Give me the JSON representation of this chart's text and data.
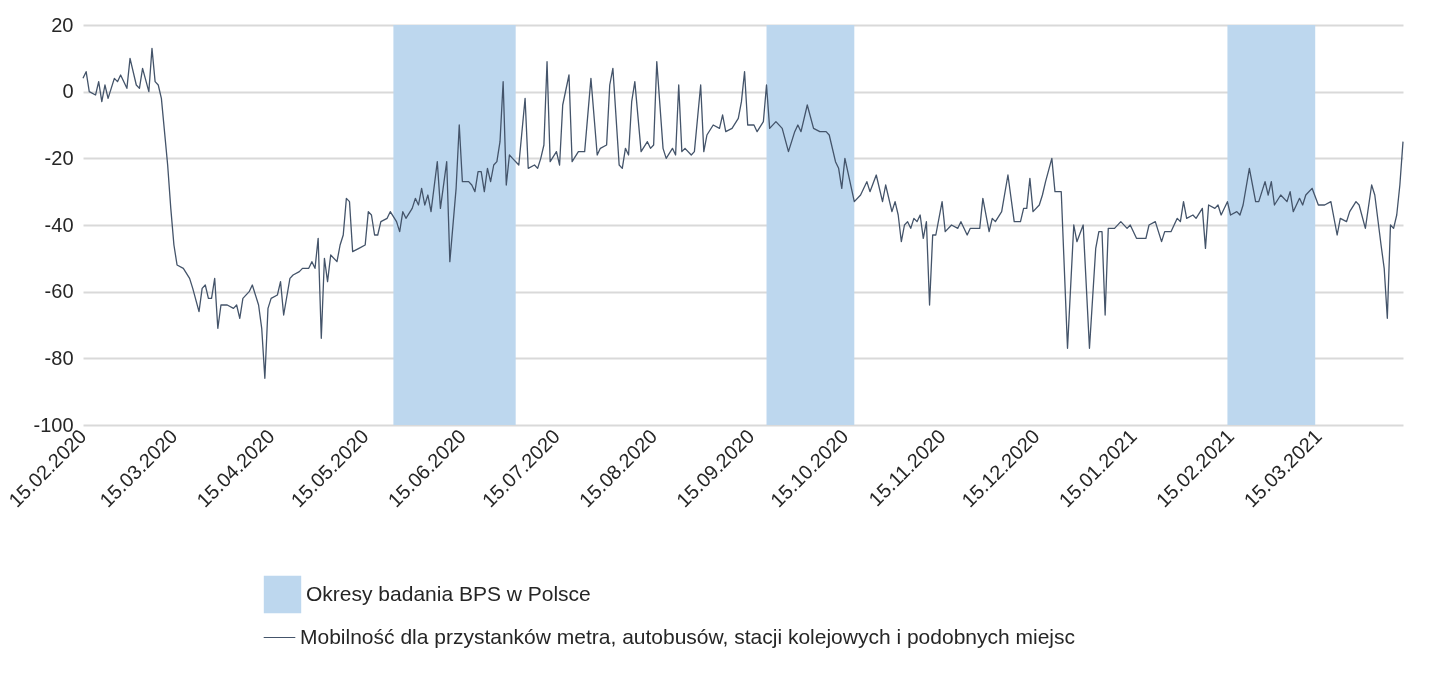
{
  "chart_data": {
    "type": "line",
    "x": [
      "2020-02-15",
      "2020-02-16",
      "2020-02-17",
      "2020-02-19",
      "2020-02-20",
      "2020-02-21",
      "2020-02-22",
      "2020-02-23",
      "2020-02-25",
      "2020-02-26",
      "2020-02-27",
      "2020-02-29",
      "2020-03-01",
      "2020-03-03",
      "2020-03-04",
      "2020-03-05",
      "2020-03-07",
      "2020-03-08",
      "2020-03-09",
      "2020-03-10",
      "2020-03-11",
      "2020-03-13",
      "2020-03-14",
      "2020-03-15",
      "2020-03-16",
      "2020-03-18",
      "2020-03-20",
      "2020-03-21",
      "2020-03-23",
      "2020-03-24",
      "2020-03-25",
      "2020-03-26",
      "2020-03-27",
      "2020-03-28",
      "2020-03-29",
      "2020-03-30",
      "2020-04-01",
      "2020-04-03",
      "2020-04-04",
      "2020-04-05",
      "2020-04-06",
      "2020-04-08",
      "2020-04-09",
      "2020-04-11",
      "2020-04-12",
      "2020-04-13",
      "2020-04-14",
      "2020-04-15",
      "2020-04-17",
      "2020-04-18",
      "2020-04-19",
      "2020-04-21",
      "2020-04-22",
      "2020-04-24",
      "2020-04-25",
      "2020-04-27",
      "2020-04-28",
      "2020-04-29",
      "2020-04-30",
      "2020-05-01",
      "2020-05-02",
      "2020-05-03",
      "2020-05-04",
      "2020-05-06",
      "2020-05-07",
      "2020-05-08",
      "2020-05-09",
      "2020-05-10",
      "2020-05-11",
      "2020-05-13",
      "2020-05-15",
      "2020-05-16",
      "2020-05-17",
      "2020-05-18",
      "2020-05-19",
      "2020-05-20",
      "2020-05-22",
      "2020-05-23",
      "2020-05-25",
      "2020-05-26",
      "2020-05-27",
      "2020-05-28",
      "2020-05-30",
      "2020-05-31",
      "2020-06-01",
      "2020-06-02",
      "2020-06-03",
      "2020-06-04",
      "2020-06-05",
      "2020-06-07",
      "2020-06-08",
      "2020-06-10",
      "2020-06-11",
      "2020-06-13",
      "2020-06-14",
      "2020-06-15",
      "2020-06-17",
      "2020-06-18",
      "2020-06-19",
      "2020-06-20",
      "2020-06-21",
      "2020-06-22",
      "2020-06-23",
      "2020-06-24",
      "2020-06-25",
      "2020-06-26",
      "2020-06-27",
      "2020-06-28",
      "2020-06-29",
      "2020-06-30",
      "2020-07-01",
      "2020-07-03",
      "2020-07-05",
      "2020-07-06",
      "2020-07-08",
      "2020-07-09",
      "2020-07-10",
      "2020-07-11",
      "2020-07-12",
      "2020-07-13",
      "2020-07-15",
      "2020-07-16",
      "2020-07-17",
      "2020-07-19",
      "2020-07-20",
      "2020-07-22",
      "2020-07-24",
      "2020-07-26",
      "2020-07-28",
      "2020-07-29",
      "2020-07-31",
      "2020-08-01",
      "2020-08-02",
      "2020-08-04",
      "2020-08-05",
      "2020-08-06",
      "2020-08-07",
      "2020-08-08",
      "2020-08-09",
      "2020-08-11",
      "2020-08-13",
      "2020-08-14",
      "2020-08-15",
      "2020-08-16",
      "2020-08-18",
      "2020-08-19",
      "2020-08-21",
      "2020-08-22",
      "2020-08-23",
      "2020-08-24",
      "2020-08-25",
      "2020-08-27",
      "2020-08-28",
      "2020-08-30",
      "2020-08-31",
      "2020-09-01",
      "2020-09-03",
      "2020-09-05",
      "2020-09-06",
      "2020-09-07",
      "2020-09-09",
      "2020-09-11",
      "2020-09-12",
      "2020-09-13",
      "2020-09-14",
      "2020-09-16",
      "2020-09-17",
      "2020-09-19",
      "2020-09-20",
      "2020-09-21",
      "2020-09-23",
      "2020-09-25",
      "2020-09-27",
      "2020-09-29",
      "2020-09-30",
      "2020-10-01",
      "2020-10-03",
      "2020-10-05",
      "2020-10-07",
      "2020-10-09",
      "2020-10-10",
      "2020-10-12",
      "2020-10-13",
      "2020-10-14",
      "2020-10-15",
      "2020-10-18",
      "2020-10-20",
      "2020-10-22",
      "2020-10-23",
      "2020-10-25",
      "2020-10-27",
      "2020-10-28",
      "2020-10-30",
      "2020-10-31",
      "2020-11-01",
      "2020-11-02",
      "2020-11-03",
      "2020-11-04",
      "2020-11-05",
      "2020-11-06",
      "2020-11-07",
      "2020-11-08",
      "2020-11-09",
      "2020-11-10",
      "2020-11-11",
      "2020-11-12",
      "2020-11-13",
      "2020-11-15",
      "2020-11-16",
      "2020-11-18",
      "2020-11-20",
      "2020-11-21",
      "2020-11-23",
      "2020-11-24",
      "2020-11-27",
      "2020-11-28",
      "2020-11-30",
      "2020-12-01",
      "2020-12-02",
      "2020-12-04",
      "2020-12-06",
      "2020-12-08",
      "2020-12-10",
      "2020-12-11",
      "2020-12-12",
      "2020-12-13",
      "2020-12-14",
      "2020-12-16",
      "2020-12-17",
      "2020-12-18",
      "2020-12-20",
      "2020-12-21",
      "2020-12-23",
      "2020-12-25",
      "2020-12-27",
      "2020-12-28",
      "2020-12-30",
      "2021-01-01",
      "2021-01-03",
      "2021-01-04",
      "2021-01-05",
      "2021-01-06",
      "2021-01-07",
      "2021-01-09",
      "2021-01-11",
      "2021-01-13",
      "2021-01-14",
      "2021-01-16",
      "2021-01-19",
      "2021-01-20",
      "2021-01-22",
      "2021-01-23",
      "2021-01-24",
      "2021-01-25",
      "2021-01-27",
      "2021-01-29",
      "2021-01-30",
      "2021-01-31",
      "2021-02-01",
      "2021-02-03",
      "2021-02-04",
      "2021-02-06",
      "2021-02-07",
      "2021-02-08",
      "2021-02-10",
      "2021-02-11",
      "2021-02-12",
      "2021-02-14",
      "2021-02-15",
      "2021-02-17",
      "2021-02-18",
      "2021-02-19",
      "2021-02-21",
      "2021-02-23",
      "2021-02-24",
      "2021-02-26",
      "2021-02-27",
      "2021-02-28",
      "2021-03-01",
      "2021-03-03",
      "2021-03-05",
      "2021-03-06",
      "2021-03-07",
      "2021-03-09",
      "2021-03-10",
      "2021-03-11",
      "2021-03-13",
      "2021-03-15",
      "2021-03-17",
      "2021-03-19",
      "2021-03-21",
      "2021-03-22",
      "2021-03-24",
      "2021-03-25",
      "2021-03-27",
      "2021-03-28",
      "2021-03-30",
      "2021-04-01",
      "2021-04-02",
      "2021-04-04",
      "2021-04-05",
      "2021-04-06",
      "2021-04-07",
      "2021-04-08",
      "2021-04-09",
      "2021-04-10",
      "2021-04-11"
    ],
    "series": [
      {
        "name": "Mobilność dla przystanków metra, autobusów, stacji kolejowych i podobnych miejsc",
        "color": "#44546a",
        "values": [
          4,
          6,
          0,
          -1,
          3,
          -3,
          2,
          -2,
          4,
          3,
          5,
          1,
          10,
          2,
          1,
          7,
          0,
          13,
          3,
          2,
          -2,
          -22,
          -35,
          -46,
          -52,
          -53,
          -56,
          -59,
          -66,
          -59,
          -58,
          -62,
          -62,
          -56,
          -71,
          -64,
          -64,
          -65,
          -64,
          -68,
          -62,
          -60,
          -58,
          -64,
          -71,
          -86,
          -65,
          -62,
          -61,
          -57,
          -67,
          -56,
          -55,
          -54,
          -53,
          -53,
          -51,
          -53,
          -44,
          -74,
          -50,
          -57,
          -49,
          -51,
          -46,
          -43,
          -32,
          -33,
          -48,
          -47,
          -46,
          -36,
          -37,
          -43,
          -43,
          -39,
          -38,
          -36,
          -39,
          -42,
          -36,
          -38,
          -35,
          -32,
          -34,
          -29,
          -34,
          -31,
          -36,
          -21,
          -35,
          -21,
          -51,
          -29,
          -10,
          -27,
          -27,
          -28,
          -30,
          -24,
          -24,
          -30,
          -23,
          -27,
          -22,
          -21,
          -15,
          3,
          -28,
          -19,
          -20,
          -22,
          -2,
          -23,
          -22,
          -23,
          -20,
          -16,
          9,
          -21,
          -18,
          -22,
          -4,
          5,
          -21,
          -18,
          -18,
          4,
          -19,
          -17,
          -16,
          2,
          7,
          -22,
          -23,
          -17,
          -19,
          -3,
          3,
          -18,
          -15,
          -17,
          -16,
          9,
          -17,
          -20,
          -17,
          -19,
          2,
          -18,
          -17,
          -19,
          -18,
          2,
          -18,
          -13,
          -10,
          -11,
          -7,
          -12,
          -11,
          -8,
          -3,
          6,
          -10,
          -10,
          -12,
          -9,
          2,
          -11,
          -9,
          -11,
          -18,
          -12,
          -10,
          -12,
          -4,
          -11,
          -12,
          -12,
          -13,
          -21,
          -23,
          -29,
          -20,
          -33,
          -31,
          -27,
          -30,
          -25,
          -33,
          -28,
          -36,
          -33,
          -37,
          -45,
          -40,
          -39,
          -41,
          -38,
          -39,
          -37,
          -44,
          -39,
          -64,
          -43,
          -43,
          -33,
          -42,
          -40,
          -41,
          -39,
          -43,
          -41,
          -41,
          -32,
          -42,
          -38,
          -39,
          -36,
          -25,
          -39,
          -39,
          -35,
          -35,
          -26,
          -36,
          -34,
          -31,
          -27,
          -20,
          -30,
          -30,
          -77,
          -40,
          -45,
          -40,
          -77,
          -47,
          -42,
          -42,
          -67,
          -41,
          -41,
          -39,
          -41,
          -40,
          -44,
          -44,
          -40,
          -39,
          -42,
          -45,
          -42,
          -42,
          -38,
          -39,
          -33,
          -38,
          -37,
          -38,
          -35,
          -47,
          -34,
          -35,
          -34,
          -37,
          -33,
          -37,
          -36,
          -37,
          -34,
          -23,
          -33,
          -33,
          -27,
          -31,
          -27,
          -34,
          -31,
          -33,
          -30,
          -36,
          -32,
          -34,
          -31,
          -29,
          -34,
          -34,
          -33,
          -43,
          -38,
          -39,
          -36,
          -33,
          -34,
          -41,
          -28,
          -31,
          -46,
          -53,
          -68,
          -40,
          -41,
          -37,
          -28,
          -15
        ]
      }
    ],
    "bands": [
      {
        "axis": "x",
        "from": "2020-05-24",
        "to": "2020-07-02",
        "label": "Okresy badania BPS w Polsce",
        "color": "#bdd7ee"
      },
      {
        "axis": "x",
        "from": "2020-09-20",
        "to": "2020-10-18",
        "color": "#bdd7ee"
      },
      {
        "axis": "x",
        "from": "2021-02-14",
        "to": "2021-03-14",
        "color": "#bdd7ee"
      }
    ],
    "xlim": [
      "2020-02-15",
      "2021-04-11"
    ],
    "xticks": [
      {
        "value": "2020-02-15",
        "label": "15.02.2020"
      },
      {
        "value": "2020-03-15",
        "label": "15.03.2020"
      },
      {
        "value": "2020-04-15",
        "label": "15.04.2020"
      },
      {
        "value": "2020-05-15",
        "label": "15.05.2020"
      },
      {
        "value": "2020-06-15",
        "label": "15.06.2020"
      },
      {
        "value": "2020-07-15",
        "label": "15.07.2020"
      },
      {
        "value": "2020-08-15",
        "label": "15.08.2020"
      },
      {
        "value": "2020-09-15",
        "label": "15.09.2020"
      },
      {
        "value": "2020-10-15",
        "label": "15.10.2020"
      },
      {
        "value": "2020-11-15",
        "label": "15.11.2020"
      },
      {
        "value": "2020-12-15",
        "label": "15.12.2020"
      },
      {
        "value": "2021-01-15",
        "label": "15.01.2021"
      },
      {
        "value": "2021-02-15",
        "label": "15.02.2021"
      },
      {
        "value": "2021-03-15",
        "label": "15.03.2021"
      }
    ],
    "ylim": [
      -100,
      20
    ],
    "yticks": [
      -100,
      -80,
      -60,
      -40,
      -20,
      0,
      20
    ],
    "grid": "y",
    "legend": "bottom",
    "line_style": "solid",
    "marker": "none"
  }
}
